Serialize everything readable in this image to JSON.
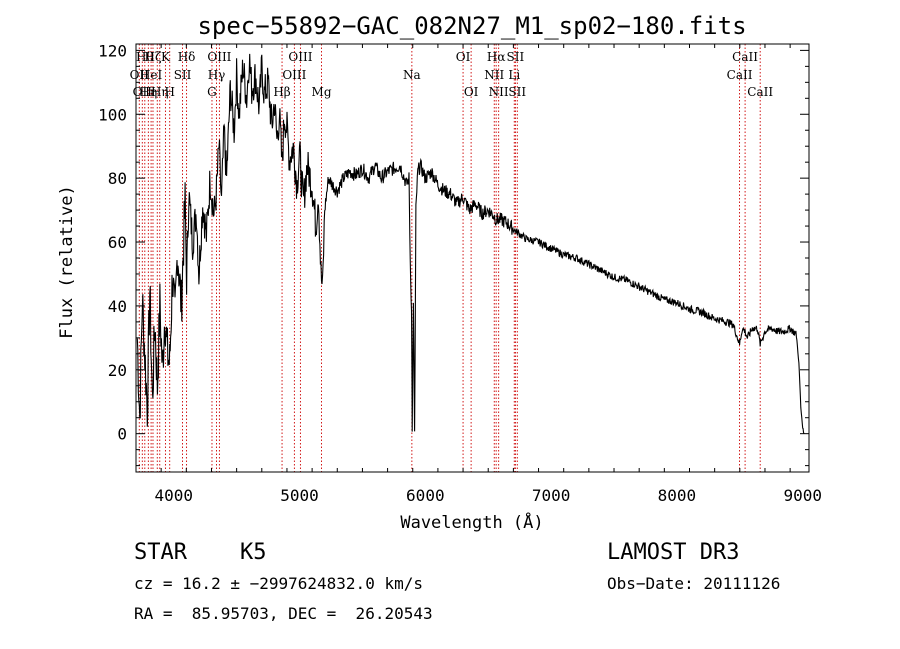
{
  "chart_data": {
    "type": "line",
    "title": "spec−55892−GAC_082N27_M1_sp02−180.fits",
    "xlabel": "Wavelength (Å)",
    "ylabel": "Flux (relative)",
    "xlim": [
      3700,
      9050
    ],
    "ylim": [
      -12,
      122
    ],
    "xticks": [
      4000,
      5000,
      6000,
      7000,
      8000,
      9000
    ],
    "yticks": [
      0,
      20,
      40,
      60,
      80,
      100,
      120
    ],
    "line_color": "#000000",
    "marker_color": "#cc0000",
    "series": [
      {
        "name": "spectrum",
        "x": [
          3710,
          3730,
          3750,
          3770,
          3790,
          3810,
          3830,
          3850,
          3870,
          3890,
          3910,
          3930,
          3950,
          3968,
          3990,
          4010,
          4030,
          4060,
          4090,
          4102,
          4120,
          4150,
          4180,
          4200,
          4230,
          4260,
          4290,
          4320,
          4340,
          4360,
          4380,
          4400,
          4420,
          4450,
          4480,
          4500,
          4520,
          4550,
          4580,
          4600,
          4620,
          4650,
          4680,
          4700,
          4720,
          4750,
          4780,
          4800,
          4820,
          4840,
          4861,
          4880,
          4900,
          4920,
          4950,
          4980,
          5000,
          5030,
          5060,
          5100,
          5130,
          5150,
          5170,
          5183,
          5200,
          5230,
          5260,
          5300,
          5350,
          5400,
          5450,
          5500,
          5550,
          5600,
          5650,
          5700,
          5750,
          5800,
          5850,
          5870,
          5880,
          5890,
          5896,
          5905,
          5915,
          5925,
          5940,
          5960,
          6000,
          6050,
          6100,
          6150,
          6200,
          6250,
          6300,
          6350,
          6400,
          6450,
          6500,
          6550,
          6563,
          6600,
          6650,
          6700,
          6800,
          6900,
          7000,
          7100,
          7200,
          7300,
          7400,
          7500,
          7600,
          7700,
          7800,
          7900,
          8000,
          8100,
          8200,
          8300,
          8400,
          8450,
          8498,
          8520,
          8542,
          8560,
          8600,
          8640,
          8662,
          8700,
          8750,
          8800,
          8850,
          8900,
          8950,
          8970,
          8985,
          9000,
          9010
        ],
        "values": [
          30,
          5,
          42,
          25,
          8,
          45,
          10,
          35,
          15,
          40,
          20,
          38,
          25,
          22,
          50,
          35,
          58,
          40,
          72,
          48,
          75,
          60,
          70,
          50,
          72,
          62,
          80,
          68,
          76,
          90,
          72,
          95,
          80,
          108,
          95,
          112,
          100,
          115,
          105,
          118,
          108,
          112,
          102,
          115,
          106,
          110,
          96,
          104,
          92,
          100,
          84,
          100,
          95,
          86,
          90,
          78,
          88,
          72,
          84,
          78,
          65,
          76,
          50,
          45,
          70,
          80,
          78,
          76,
          80,
          82,
          81,
          83,
          80,
          84,
          80,
          82,
          83,
          84,
          78,
          80,
          55,
          38,
          2,
          40,
          0,
          70,
          82,
          84,
          80,
          82,
          78,
          76,
          75,
          72,
          74,
          70,
          72,
          69,
          70,
          68,
          67,
          67,
          66,
          64,
          61,
          60,
          58,
          56,
          55,
          53,
          51,
          49,
          48,
          46,
          44,
          42,
          41,
          39,
          38,
          36,
          35,
          34,
          28,
          33,
          32,
          30,
          33,
          33,
          28,
          32,
          33,
          32,
          32,
          33,
          31,
          22,
          8,
          2,
          0
        ]
      }
    ],
    "line_markers": [
      {
        "x": 3726,
        "label": "OII",
        "row": 2
      },
      {
        "x": 3750,
        "label": "OII",
        "row": 3
      },
      {
        "x": 3770,
        "label": "Hθ",
        "row": 1
      },
      {
        "x": 3798,
        "label": "Hη",
        "row": 3
      },
      {
        "x": 3820,
        "label": "HeI",
        "row": 2
      },
      {
        "x": 3835,
        "label": "Hζ",
        "row": 1
      },
      {
        "x": 3869,
        "label": "",
        "row": 0
      },
      {
        "x": 3889,
        "label": "Hη",
        "row": 3
      },
      {
        "x": 3934,
        "label": "K",
        "row": 1
      },
      {
        "x": 3968,
        "label": "H",
        "row": 3
      },
      {
        "x": 4070,
        "label": "SII",
        "row": 2
      },
      {
        "x": 4102,
        "label": "Hδ",
        "row": 1
      },
      {
        "x": 4304,
        "label": "G",
        "row": 3
      },
      {
        "x": 4340,
        "label": "Hγ",
        "row": 2
      },
      {
        "x": 4363,
        "label": "OIII",
        "row": 1
      },
      {
        "x": 4861,
        "label": "Hβ",
        "row": 3
      },
      {
        "x": 4959,
        "label": "OIII",
        "row": 2
      },
      {
        "x": 5007,
        "label": "OIII",
        "row": 1
      },
      {
        "x": 5175,
        "label": "Mg",
        "row": 3
      },
      {
        "x": 5893,
        "label": "Na",
        "row": 2
      },
      {
        "x": 6300,
        "label": "OI",
        "row": 1
      },
      {
        "x": 6364,
        "label": "OI",
        "row": 3
      },
      {
        "x": 6548,
        "label": "NII",
        "row": 2
      },
      {
        "x": 6563,
        "label": "Hα",
        "row": 1
      },
      {
        "x": 6583,
        "label": "NII",
        "row": 3
      },
      {
        "x": 6707,
        "label": "Li",
        "row": 2
      },
      {
        "x": 6716,
        "label": "SII",
        "row": 1
      },
      {
        "x": 6731,
        "label": "SII",
        "row": 3
      },
      {
        "x": 8498,
        "label": "CaII",
        "row": 2
      },
      {
        "x": 8542,
        "label": "CaII",
        "row": 1
      },
      {
        "x": 8662,
        "label": "CaII",
        "row": 3
      }
    ]
  },
  "info": {
    "object_class": "STAR",
    "subclass": "K5",
    "survey": "LAMOST DR3",
    "redshift": "cz = 16.2 ± −2997624832.0 km/s",
    "obs_date": "Obs−Date: 20111126",
    "coords": "RA =  85.95703, DEC =  26.20543"
  }
}
